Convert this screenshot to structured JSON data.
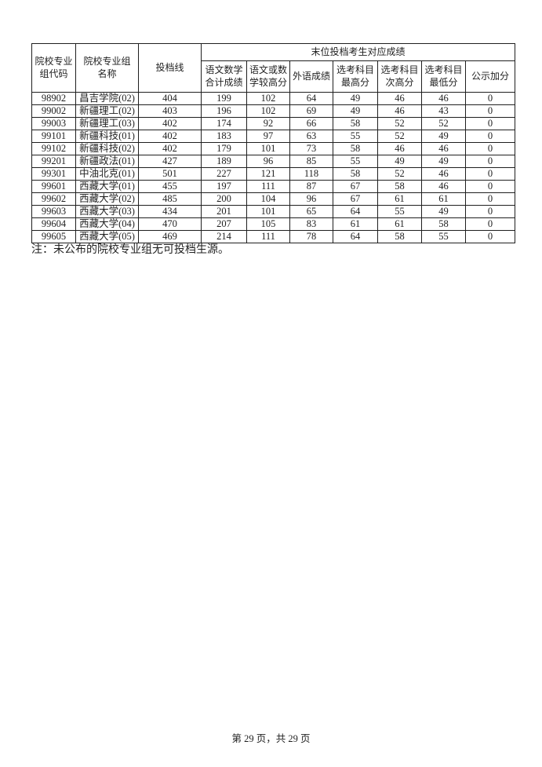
{
  "page": {
    "note": "注：未公布的院校专业组无可投档生源。",
    "footer": "第 29 页，共 29 页"
  },
  "table": {
    "header": {
      "col_code": "院校专业\n组代码",
      "col_name": "院校专业组\n名称",
      "col_line": "投档线",
      "group_title": "末位投档考生对应成绩",
      "sub_columns": [
        "语文数学\n合计成绩",
        "语文或数\n学较高分",
        "外语成绩",
        "选考科目\n最高分",
        "选考科目\n次高分",
        "选考科目\n最低分",
        "公示加分"
      ]
    },
    "rows": [
      [
        "98902",
        "昌吉学院(02)",
        "404",
        "199",
        "102",
        "64",
        "49",
        "46",
        "46",
        "0"
      ],
      [
        "99002",
        "新疆理工(02)",
        "403",
        "196",
        "102",
        "69",
        "49",
        "46",
        "43",
        "0"
      ],
      [
        "99003",
        "新疆理工(03)",
        "402",
        "174",
        "92",
        "66",
        "58",
        "52",
        "52",
        "0"
      ],
      [
        "99101",
        "新疆科技(01)",
        "402",
        "183",
        "97",
        "63",
        "55",
        "52",
        "49",
        "0"
      ],
      [
        "99102",
        "新疆科技(02)",
        "402",
        "179",
        "101",
        "73",
        "58",
        "46",
        "46",
        "0"
      ],
      [
        "99201",
        "新疆政法(01)",
        "427",
        "189",
        "96",
        "85",
        "55",
        "49",
        "49",
        "0"
      ],
      [
        "99301",
        "中油北克(01)",
        "501",
        "227",
        "121",
        "118",
        "58",
        "52",
        "46",
        "0"
      ],
      [
        "99601",
        "西藏大学(01)",
        "455",
        "197",
        "111",
        "87",
        "67",
        "58",
        "46",
        "0"
      ],
      [
        "99602",
        "西藏大学(02)",
        "485",
        "200",
        "104",
        "96",
        "67",
        "61",
        "61",
        "0"
      ],
      [
        "99603",
        "西藏大学(03)",
        "434",
        "201",
        "101",
        "65",
        "64",
        "55",
        "49",
        "0"
      ],
      [
        "99604",
        "西藏大学(04)",
        "470",
        "207",
        "105",
        "83",
        "61",
        "61",
        "58",
        "0"
      ],
      [
        "99605",
        "西藏大学(05)",
        "469",
        "214",
        "111",
        "78",
        "64",
        "58",
        "55",
        "0"
      ]
    ]
  }
}
